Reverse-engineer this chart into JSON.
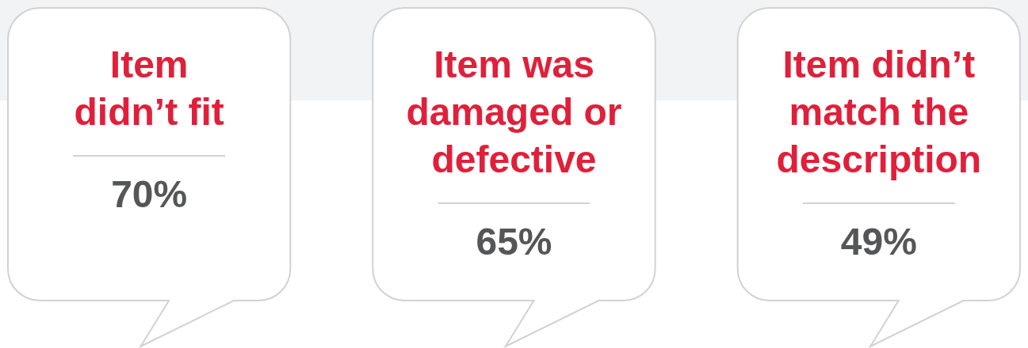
{
  "chart_data": {
    "type": "other",
    "categories": [
      "Item\ndidn’t fit",
      "Item was\ndamaged or\ndefective",
      "Item didn’t\nmatch the\ndescription"
    ],
    "values": [
      70,
      65,
      49
    ],
    "value_labels": [
      "70%",
      "65%",
      "49%"
    ]
  }
}
